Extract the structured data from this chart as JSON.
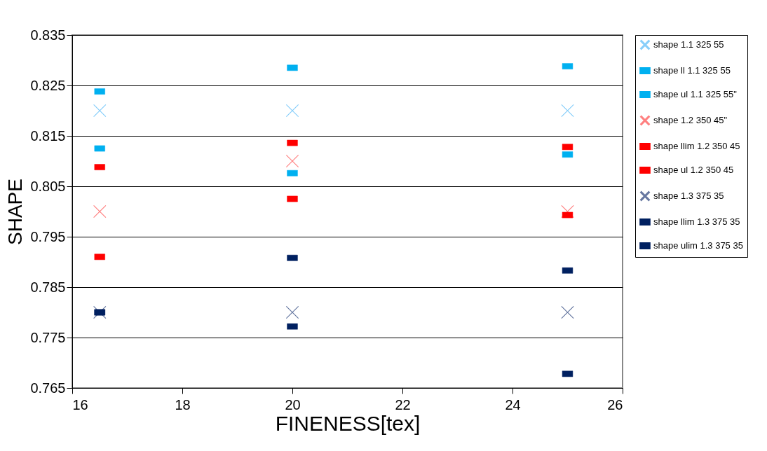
{
  "chart_data": {
    "type": "scatter",
    "xlabel": "FINENESS[tex]",
    "ylabel": "SHAPE",
    "x": [
      16.5,
      20,
      25
    ],
    "xlim": [
      16,
      26
    ],
    "xticks": [
      16,
      18,
      20,
      22,
      24,
      26
    ],
    "ylim": [
      0.765,
      0.835
    ],
    "yticks": [
      0.765,
      0.775,
      0.785,
      0.795,
      0.805,
      0.815,
      0.825,
      0.835
    ],
    "grid": "y",
    "legend": "right",
    "series": [
      {
        "name": "shape 1.1 325 55",
        "color": "#87cefa",
        "marker": "cross",
        "values": [
          0.82,
          0.82,
          0.82
        ]
      },
      {
        "name": "shape ll 1.1 325 55",
        "color": "#00b0f0",
        "marker": "square",
        "values": [
          0.8125,
          0.8076,
          0.8113
        ]
      },
      {
        "name": "shape ul 1.1 325 55\"",
        "color": "#00b0f0",
        "marker": "square",
        "values": [
          0.8238,
          0.8285,
          0.8288
        ]
      },
      {
        "name": "shape 1.2 350 45\"",
        "color": "#ff8080",
        "marker": "cross",
        "values": [
          0.8,
          0.81,
          0.8
        ]
      },
      {
        "name": "shape llim 1.2 350 45",
        "color": "#ff0000",
        "marker": "square",
        "values": [
          0.791,
          0.8025,
          0.7993
        ]
      },
      {
        "name": "shape ul 1.2 350 45",
        "color": "#ff0000",
        "marker": "square",
        "values": [
          0.8088,
          0.8136,
          0.8128
        ]
      },
      {
        "name": "shape 1.3 375 35",
        "color": "#6677a0",
        "marker": "cross",
        "values": [
          0.78,
          0.78,
          0.78
        ]
      },
      {
        "name": "shape llim 1.3 375 35",
        "color": "#002060",
        "marker": "square",
        "values": [
          0.78,
          0.7772,
          0.7678
        ]
      },
      {
        "name": "shape ulim 1.3 375 35",
        "color": "#002060",
        "marker": "square",
        "values": [
          0.78,
          0.7908,
          0.7883
        ]
      }
    ]
  }
}
